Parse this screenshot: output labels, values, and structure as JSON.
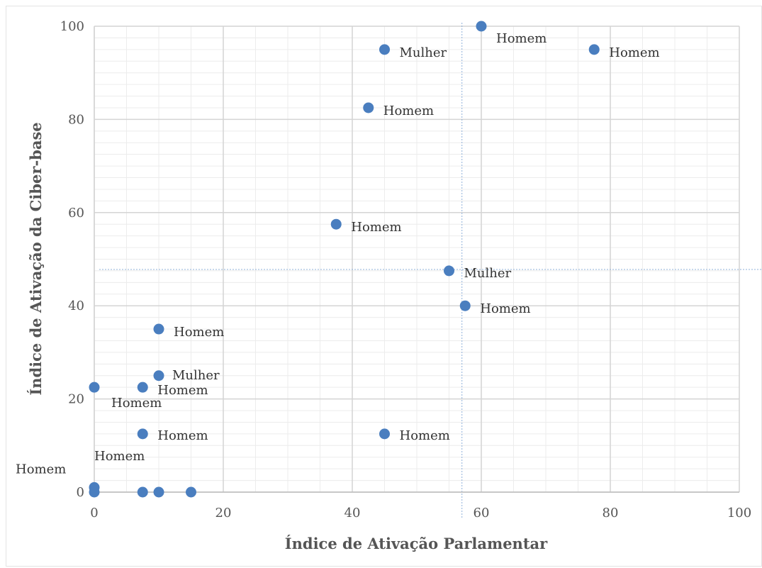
{
  "chart_data": {
    "type": "scatter",
    "xlabel": "Índice de Ativação Parlamentar",
    "ylabel": "Índice  de Ativação da Ciber-base",
    "xlim": [
      0,
      100
    ],
    "ylim": [
      0,
      100
    ],
    "x_ticks": [
      0,
      20,
      40,
      60,
      80,
      100
    ],
    "y_ticks": [
      0,
      20,
      40,
      60,
      80,
      100
    ],
    "x_tick_labels": [
      "0",
      "20",
      "40",
      "60",
      "80",
      "100"
    ],
    "y_tick_labels": [
      "0",
      "20",
      "40",
      "60",
      "80",
      "100"
    ],
    "grid": true,
    "reference_lines": {
      "x": 57,
      "y": 47.8
    },
    "point_color": "#4a7ebf",
    "points": [
      {
        "x": 60,
        "y": 100,
        "label": "Homem"
      },
      {
        "x": 45,
        "y": 95,
        "label": "Mulher"
      },
      {
        "x": 77.5,
        "y": 95,
        "label": "Homem"
      },
      {
        "x": 42.5,
        "y": 82.5,
        "label": "Homem"
      },
      {
        "x": 37.5,
        "y": 57.5,
        "label": "Homem"
      },
      {
        "x": 55,
        "y": 47.5,
        "label": "Mulher"
      },
      {
        "x": 57.5,
        "y": 40,
        "label": "Homem"
      },
      {
        "x": 10,
        "y": 35,
        "label": "Homem"
      },
      {
        "x": 10,
        "y": 25,
        "label": "Mulher"
      },
      {
        "x": 7.5,
        "y": 22.5,
        "label": "Homem"
      },
      {
        "x": 0,
        "y": 22.5,
        "label": "Homem"
      },
      {
        "x": 7.5,
        "y": 12.5,
        "label": "Homem"
      },
      {
        "x": 45,
        "y": 12.5,
        "label": "Homem"
      },
      {
        "x": 0,
        "y": 1,
        "label": "Homem"
      },
      {
        "x": 0,
        "y": 0,
        "label": "Homem"
      },
      {
        "x": 7.5,
        "y": 0,
        "label": ""
      },
      {
        "x": 10,
        "y": 0,
        "label": ""
      },
      {
        "x": 15,
        "y": 0,
        "label": ""
      }
    ]
  }
}
